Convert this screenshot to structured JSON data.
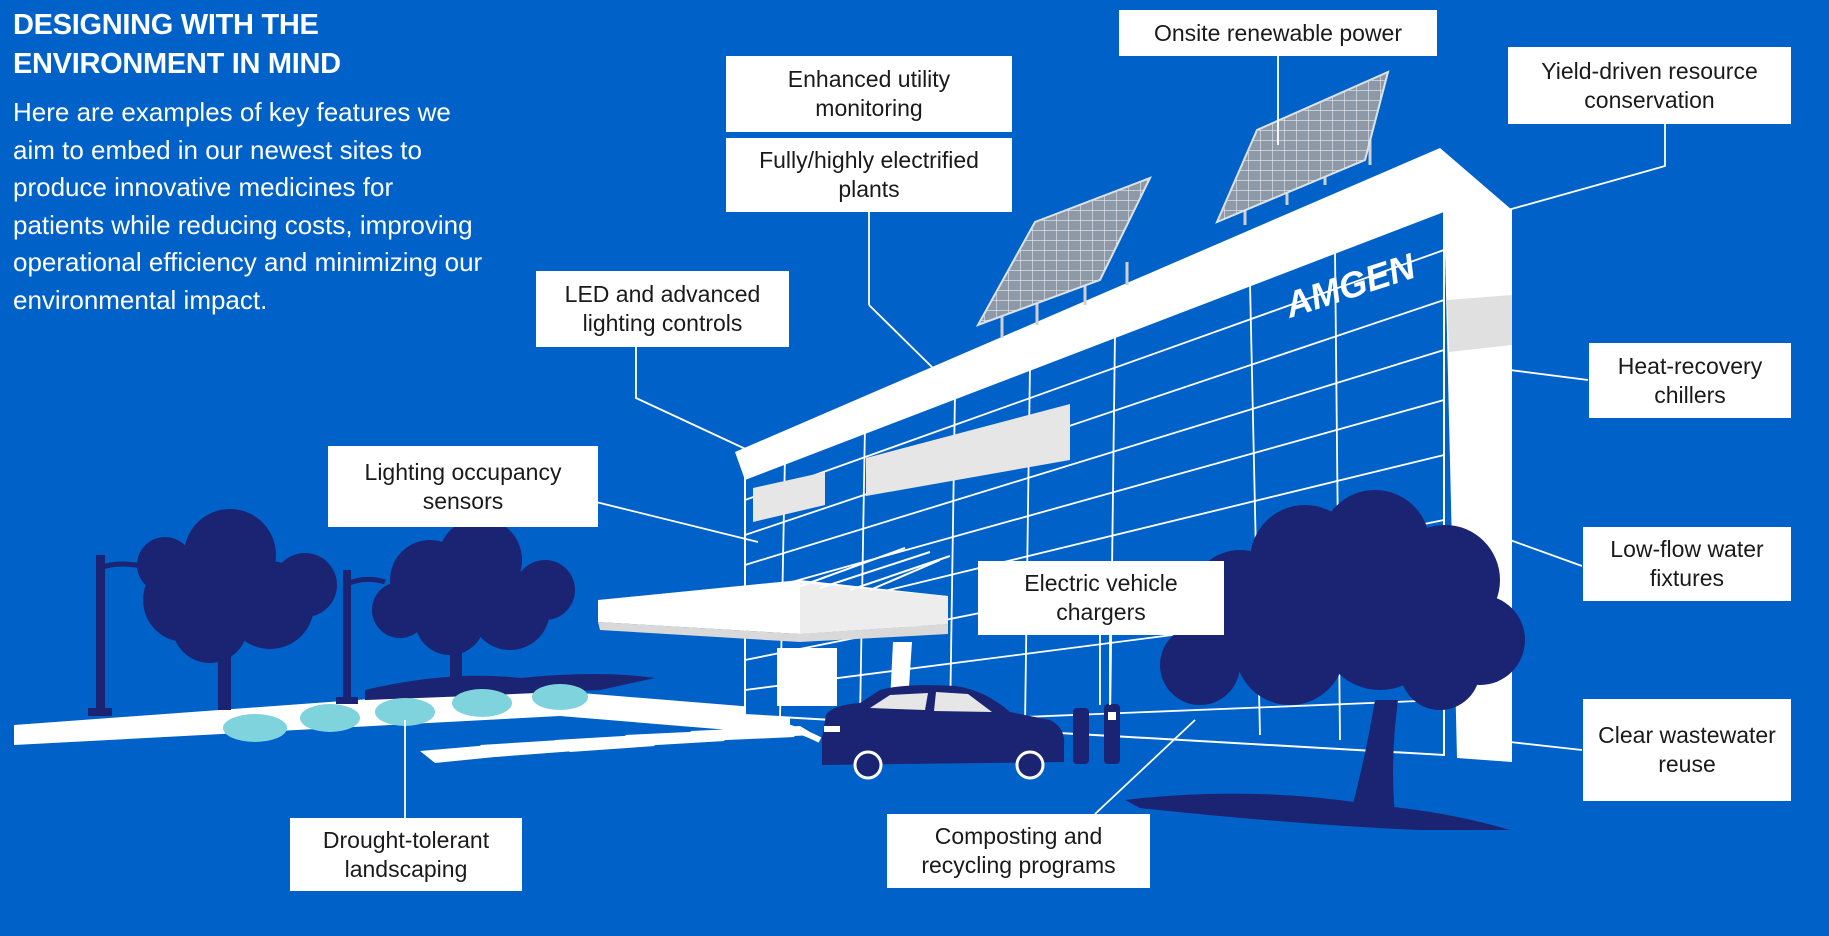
{
  "heading": "DESIGNING WITH THE ENVIRONMENT IN MIND",
  "intro": "Here are examples of key features we aim to embed in our newest sites to produce innovative medicines for patients while reducing costs, improving operational efficiency and minimizing our environmental impact.",
  "logo_text": "AMGEN",
  "colors": {
    "background": "#0062C8",
    "tree": "#1B2472",
    "building": "#FFFFFF",
    "grass": "#7FD3DD",
    "label_bg": "#FFFFFF"
  },
  "labels": {
    "onsite_renewable_power": "Onsite renewable power",
    "enhanced_utility_monitoring": "Enhanced utility monitoring",
    "fully_electrified_plants": "Fully/highly electrified plants",
    "yield_driven_conservation": "Yield-driven resource conservation",
    "led_lighting_controls": "LED and advanced lighting controls",
    "heat_recovery_chillers": "Heat-recovery chillers",
    "lighting_occupancy_sensors": "Lighting occupancy sensors",
    "low_flow_water_fixtures": "Low-flow water fixtures",
    "electric_vehicle_chargers": "Electric vehicle chargers",
    "clear_wastewater_reuse": "Clear wastewater reuse",
    "drought_tolerant_landscaping": "Drought-tolerant landscaping",
    "composting_recycling": "Composting and recycling programs"
  }
}
